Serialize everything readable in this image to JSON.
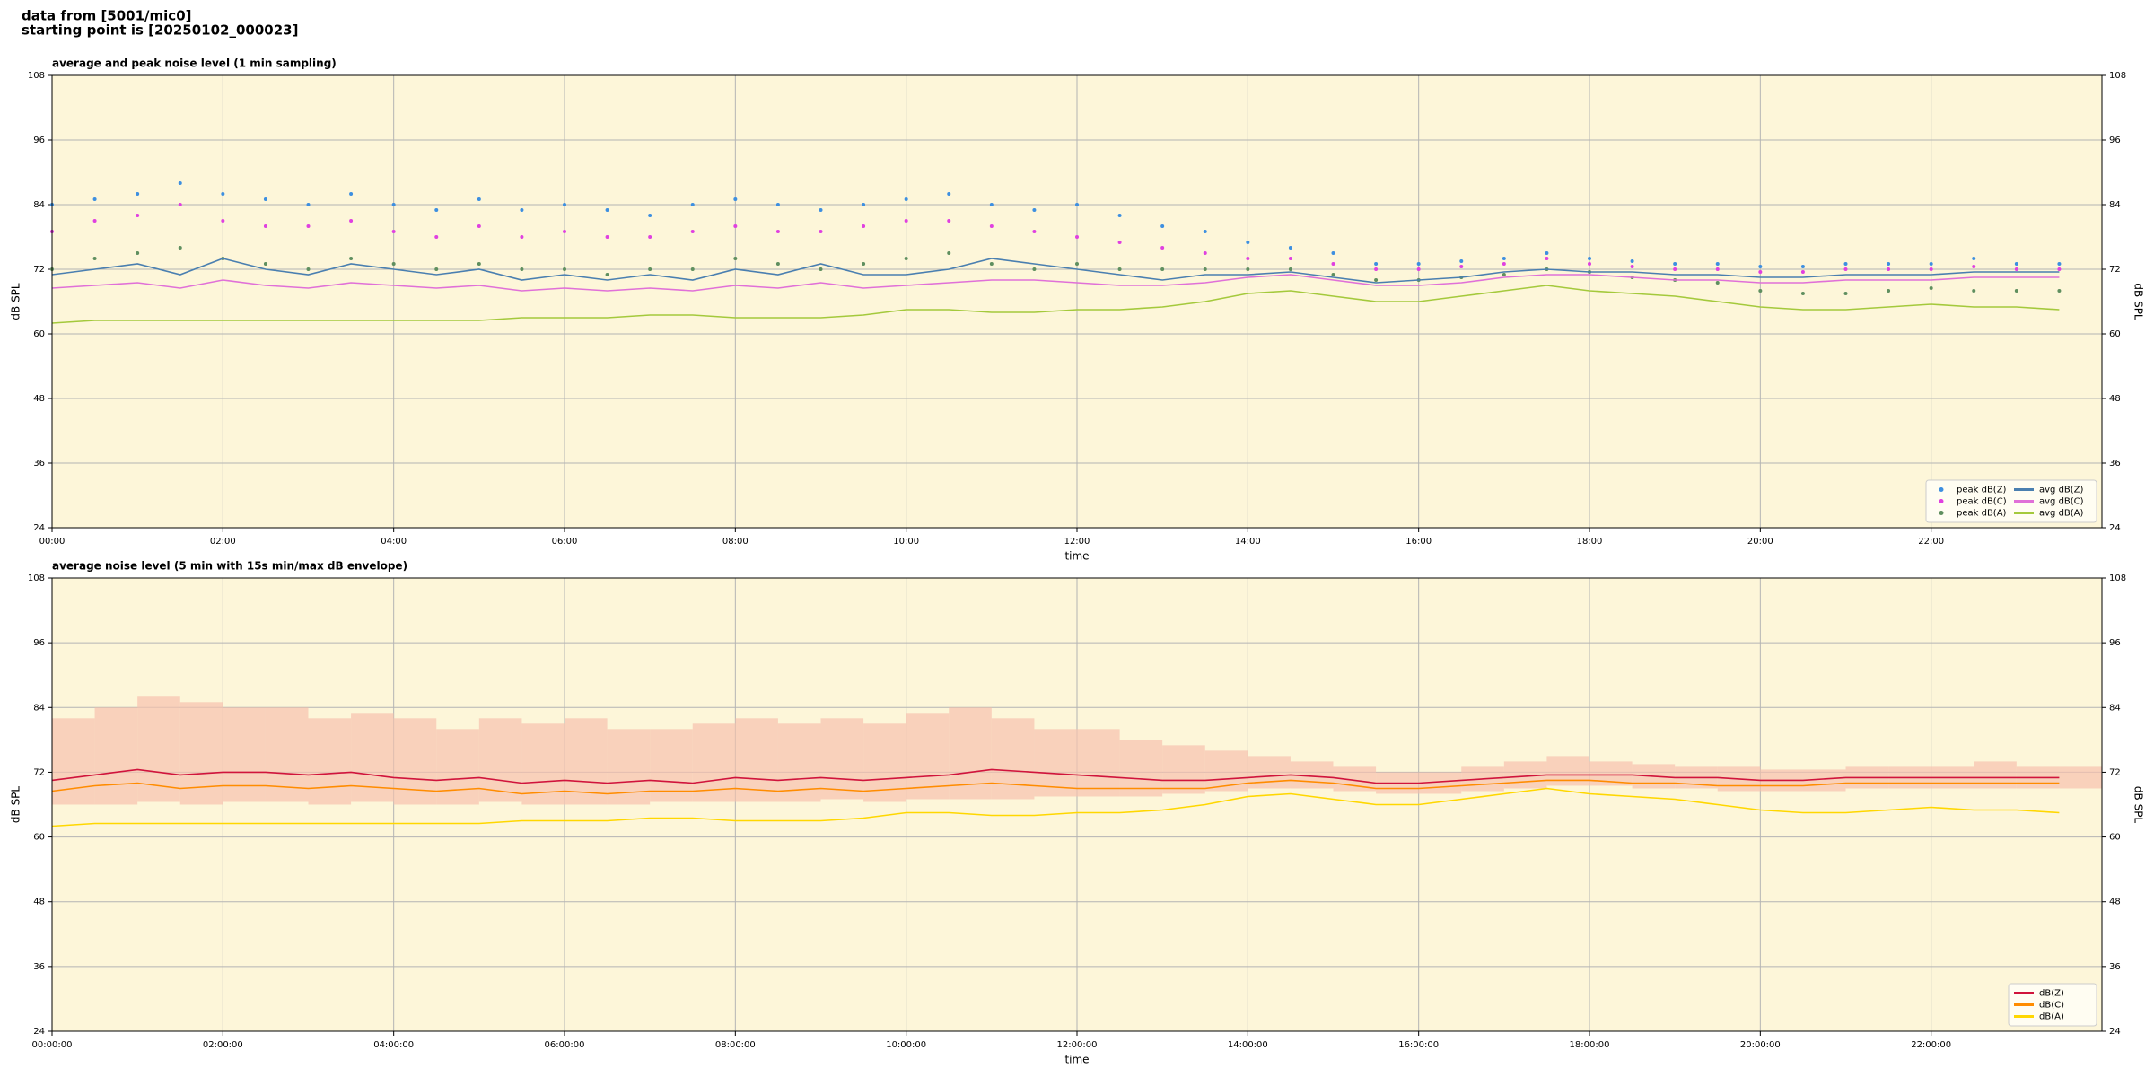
{
  "header": {
    "lines": [
      "data from [5001/mic0]",
      "starting point is [20250102_000023]"
    ]
  },
  "chart_data": [
    {
      "type": "line",
      "title": "average and peak noise level (1 min sampling)",
      "xlabel": "time",
      "ylabel": "dB SPL",
      "background": "#fdf6d9",
      "grid": true,
      "legend": "lower right",
      "legend_ncol": 2,
      "xlim": [
        0,
        24
      ],
      "ylim": [
        24,
        108
      ],
      "yticks": [
        24,
        36,
        48,
        60,
        72,
        84,
        96,
        108
      ],
      "xticks": [
        {
          "value": 0,
          "label": "00:00"
        },
        {
          "value": 2,
          "label": "02:00"
        },
        {
          "value": 4,
          "label": "04:00"
        },
        {
          "value": 6,
          "label": "06:00"
        },
        {
          "value": 8,
          "label": "08:00"
        },
        {
          "value": 10,
          "label": "10:00"
        },
        {
          "value": 12,
          "label": "12:00"
        },
        {
          "value": 14,
          "label": "14:00"
        },
        {
          "value": 16,
          "label": "16:00"
        },
        {
          "value": 18,
          "label": "18:00"
        },
        {
          "value": 20,
          "label": "20:00"
        },
        {
          "value": 22,
          "label": "22:00"
        }
      ],
      "x": [
        0,
        0.5,
        1,
        1.5,
        2,
        2.5,
        3,
        3.5,
        4,
        4.5,
        5,
        5.5,
        6,
        6.5,
        7,
        7.5,
        8,
        8.5,
        9,
        9.5,
        10,
        10.5,
        11,
        11.5,
        12,
        12.5,
        13,
        13.5,
        14,
        14.5,
        15,
        15.5,
        16,
        16.5,
        17,
        17.5,
        18,
        18.5,
        19,
        19.5,
        20,
        20.5,
        21,
        21.5,
        22,
        22.5,
        23,
        23.5
      ],
      "series": [
        {
          "name": "peak dB(Z)",
          "type": "scatter",
          "color": "#3d8fe0",
          "values": [
            84,
            85,
            86,
            88,
            86,
            85,
            84,
            86,
            84,
            83,
            85,
            83,
            84,
            83,
            82,
            84,
            85,
            84,
            83,
            84,
            85,
            86,
            84,
            83,
            84,
            82,
            80,
            79,
            77,
            76,
            75,
            73,
            73,
            73.5,
            74,
            75,
            74,
            73.5,
            73,
            73,
            72.5,
            72.5,
            73,
            73,
            73,
            74,
            73,
            73
          ]
        },
        {
          "name": "peak dB(C)",
          "type": "scatter",
          "color": "#e040e0",
          "values": [
            79,
            81,
            82,
            84,
            81,
            80,
            80,
            81,
            79,
            78,
            80,
            78,
            79,
            78,
            78,
            79,
            80,
            79,
            79,
            80,
            81,
            81,
            80,
            79,
            78,
            77,
            76,
            75,
            74,
            74,
            73,
            72,
            72,
            72.5,
            73,
            74,
            73,
            72.5,
            72,
            72,
            71.5,
            71.5,
            72,
            72,
            72,
            72.5,
            72,
            72
          ]
        },
        {
          "name": "peak dB(A)",
          "type": "scatter",
          "color": "#5f8f5f",
          "values": [
            72,
            74,
            75,
            76,
            74,
            73,
            72,
            74,
            73,
            72,
            73,
            72,
            72,
            71,
            72,
            72,
            74,
            73,
            72,
            73,
            74,
            75,
            73,
            72,
            73,
            72,
            72,
            72,
            72,
            72,
            71,
            70,
            70,
            70.5,
            71,
            72,
            71.5,
            70.5,
            70,
            69.5,
            68,
            67.5,
            67.5,
            68,
            68.5,
            68,
            68,
            68
          ]
        },
        {
          "name": "avg dB(Z)",
          "type": "line",
          "color": "#4a7fb0",
          "values": [
            71,
            72,
            73,
            71,
            74,
            72,
            71,
            73,
            72,
            71,
            72,
            70,
            71,
            70,
            71,
            70,
            72,
            71,
            73,
            71,
            71,
            72,
            74,
            73,
            72,
            71,
            70,
            71,
            71,
            71.5,
            70.5,
            69.5,
            70,
            70.5,
            71.5,
            72,
            71.5,
            71.5,
            71,
            71,
            70.5,
            70.5,
            71,
            71,
            71,
            71.5,
            71.5,
            71.5
          ]
        },
        {
          "name": "avg dB(C)",
          "type": "line",
          "color": "#e070d8",
          "values": [
            68.5,
            69,
            69.5,
            68.5,
            70,
            69,
            68.5,
            69.5,
            69,
            68.5,
            69,
            68,
            68.5,
            68,
            68.5,
            68,
            69,
            68.5,
            69.5,
            68.5,
            69,
            69.5,
            70,
            70,
            69.5,
            69,
            69,
            69.5,
            70.5,
            71,
            70,
            69,
            69,
            69.5,
            70.5,
            71,
            71,
            70.5,
            70,
            70,
            69.5,
            69.5,
            70,
            70,
            70,
            70.5,
            70.5,
            70.5
          ]
        },
        {
          "name": "avg dB(A)",
          "type": "line",
          "color": "#a4c93c",
          "values": [
            62,
            62.5,
            62.5,
            62.5,
            62.5,
            62.5,
            62.5,
            62.5,
            62.5,
            62.5,
            62.5,
            63,
            63,
            63,
            63.5,
            63.5,
            63,
            63,
            63,
            63.5,
            64.5,
            64.5,
            64,
            64,
            64.5,
            64.5,
            65,
            66,
            67.5,
            68,
            67,
            66,
            66,
            67,
            68,
            69,
            68,
            67.5,
            67,
            66,
            65,
            64.5,
            64.5,
            65,
            65.5,
            65,
            65,
            64.5
          ]
        }
      ]
    },
    {
      "type": "line",
      "title": "average noise level (5 min with 15s min/max dB envelope)",
      "xlabel": "time",
      "ylabel": "dB SPL",
      "background": "#fdf6d9",
      "grid": true,
      "legend": "lower right",
      "legend_ncol": 1,
      "xlim": [
        0,
        24
      ],
      "ylim": [
        24,
        108
      ],
      "yticks": [
        24,
        36,
        48,
        60,
        72,
        84,
        96,
        108
      ],
      "xticks": [
        {
          "value": 0,
          "label": "00:00:00"
        },
        {
          "value": 2,
          "label": "02:00:00"
        },
        {
          "value": 4,
          "label": "04:00:00"
        },
        {
          "value": 6,
          "label": "06:00:00"
        },
        {
          "value": 8,
          "label": "08:00:00"
        },
        {
          "value": 10,
          "label": "10:00:00"
        },
        {
          "value": 12,
          "label": "12:00:00"
        },
        {
          "value": 14,
          "label": "14:00:00"
        },
        {
          "value": 16,
          "label": "16:00:00"
        },
        {
          "value": 18,
          "label": "18:00:00"
        },
        {
          "value": 20,
          "label": "20:00:00"
        },
        {
          "value": 22,
          "label": "22:00:00"
        }
      ],
      "x": [
        0,
        0.5,
        1,
        1.5,
        2,
        2.5,
        3,
        3.5,
        4,
        4.5,
        5,
        5.5,
        6,
        6.5,
        7,
        7.5,
        8,
        8.5,
        9,
        9.5,
        10,
        10.5,
        11,
        11.5,
        12,
        12.5,
        13,
        13.5,
        14,
        14.5,
        15,
        15.5,
        16,
        16.5,
        17,
        17.5,
        18,
        18.5,
        19,
        19.5,
        20,
        20.5,
        21,
        21.5,
        22,
        22.5,
        23,
        23.5
      ],
      "envelope": {
        "color": "#f6c2ae",
        "upper": [
          82,
          84,
          86,
          85,
          84,
          84,
          82,
          83,
          82,
          80,
          82,
          81,
          82,
          80,
          80,
          81,
          82,
          81,
          82,
          81,
          83,
          84,
          82,
          80,
          80,
          78,
          77,
          76,
          75,
          74,
          73,
          72,
          72,
          73,
          74,
          75,
          74,
          73.5,
          73,
          73,
          72.5,
          72.5,
          73,
          73,
          73,
          74,
          73,
          73
        ],
        "lower": [
          66,
          66,
          66.5,
          66,
          66.5,
          66.5,
          66,
          66.5,
          66,
          66,
          66.5,
          66,
          66,
          66,
          66.5,
          66.5,
          66.5,
          66.5,
          67,
          66.5,
          67,
          67,
          67,
          67.5,
          67.5,
          67.5,
          68,
          68.5,
          69,
          69,
          68.5,
          68,
          68,
          68.5,
          69,
          69.5,
          69.5,
          69,
          69,
          68.5,
          68.5,
          68.5,
          69,
          69,
          69,
          69,
          69,
          69
        ]
      },
      "series": [
        {
          "name": "dB(Z)",
          "type": "line",
          "color": "#d0143c",
          "values": [
            70.5,
            71.5,
            72.5,
            71.5,
            72,
            72,
            71.5,
            72,
            71,
            70.5,
            71,
            70,
            70.5,
            70,
            70.5,
            70,
            71,
            70.5,
            71,
            70.5,
            71,
            71.5,
            72.5,
            72,
            71.5,
            71,
            70.5,
            70.5,
            71,
            71.5,
            71,
            70,
            70,
            70.5,
            71,
            71.5,
            71.5,
            71.5,
            71,
            71,
            70.5,
            70.5,
            71,
            71,
            71,
            71,
            71,
            71
          ]
        },
        {
          "name": "dB(C)",
          "type": "line",
          "color": "#ff8c00",
          "values": [
            68.5,
            69.5,
            70,
            69,
            69.5,
            69.5,
            69,
            69.5,
            69,
            68.5,
            69,
            68,
            68.5,
            68,
            68.5,
            68.5,
            69,
            68.5,
            69,
            68.5,
            69,
            69.5,
            70,
            69.5,
            69,
            69,
            69,
            69,
            70,
            70.5,
            70,
            69,
            69,
            69.5,
            70,
            70.5,
            70.5,
            70,
            70,
            69.5,
            69.5,
            69.5,
            70,
            70,
            70,
            70,
            70,
            70
          ]
        },
        {
          "name": "dB(A)",
          "type": "line",
          "color": "#ffd700",
          "values": [
            62,
            62.5,
            62.5,
            62.5,
            62.5,
            62.5,
            62.5,
            62.5,
            62.5,
            62.5,
            62.5,
            63,
            63,
            63,
            63.5,
            63.5,
            63,
            63,
            63,
            63.5,
            64.5,
            64.5,
            64,
            64,
            64.5,
            64.5,
            65,
            66,
            67.5,
            68,
            67,
            66,
            66,
            67,
            68,
            69,
            68,
            67.5,
            67,
            66,
            65,
            64.5,
            64.5,
            65,
            65.5,
            65,
            65,
            64.5
          ]
        }
      ]
    }
  ]
}
